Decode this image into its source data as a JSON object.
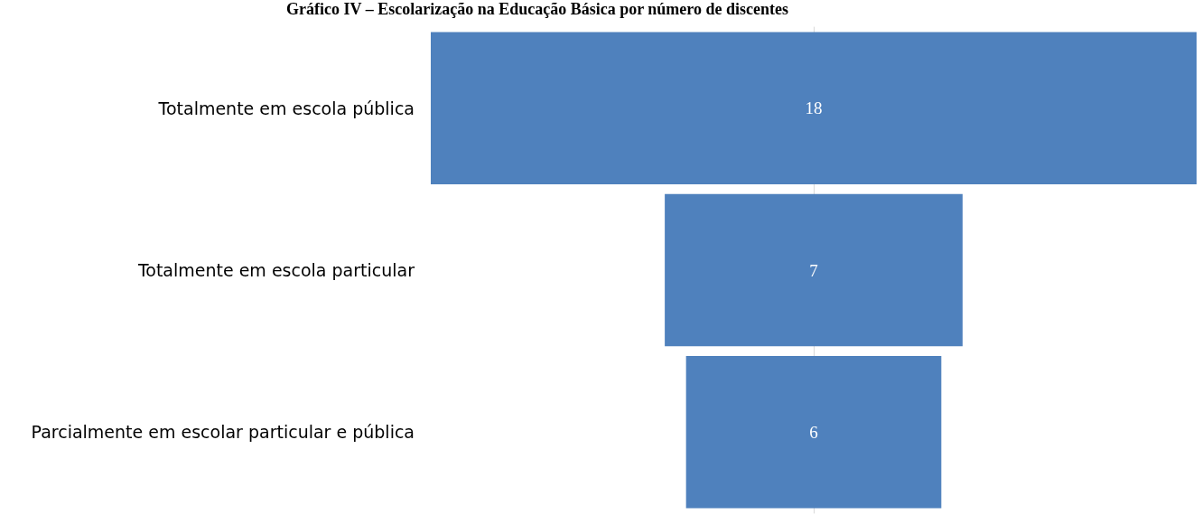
{
  "chart_data": {
    "type": "other",
    "title": "Gráfico IV – Escolarização na Educação Básica por número de discentes",
    "categories": [
      "Totalmente em escola pública",
      "Totalmente em escola particular",
      "Parcialmente em escolar particular e pública"
    ],
    "values": [
      18,
      7,
      6
    ],
    "color": "#4f81bd",
    "data_labels": true
  }
}
